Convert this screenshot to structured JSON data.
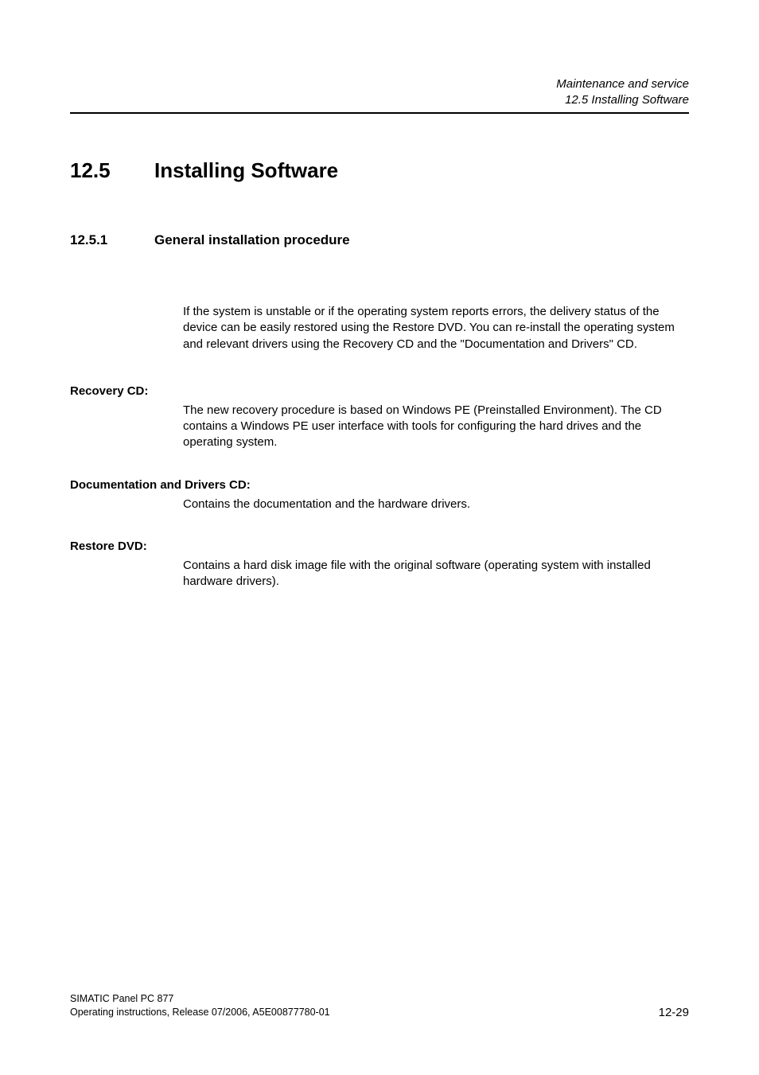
{
  "header": {
    "chapter": "Maintenance and service",
    "section": "12.5 Installing Software"
  },
  "h1": {
    "number": "12.5",
    "title": "Installing Software"
  },
  "h2": {
    "number": "12.5.1",
    "title": "General installation procedure"
  },
  "intro_paragraph": "If the system is unstable or if the operating system reports errors, the delivery status of the device can be easily restored using the Restore DVD. You can re-install the operating system and relevant drivers using the Recovery CD and the \"Documentation and Drivers\" CD.",
  "sections": [
    {
      "heading": "Recovery CD:",
      "body": "The new recovery procedure is based on Windows PE (Preinstalled Environment). The CD contains a Windows PE user interface with tools for configuring the hard drives and the operating system."
    },
    {
      "heading": "Documentation and Drivers CD:",
      "body": "Contains the documentation and the hardware drivers."
    },
    {
      "heading": "Restore DVD:",
      "body": "Contains a hard disk image file with the original software (operating system with installed hardware drivers)."
    }
  ],
  "footer": {
    "product": "SIMATIC Panel PC 877",
    "docline": "Operating instructions, Release 07/2006, A5E00877780-01",
    "page": "12-29"
  }
}
